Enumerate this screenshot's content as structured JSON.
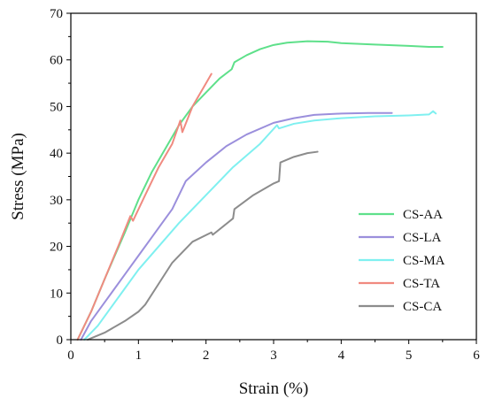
{
  "chart_data": {
    "type": "line",
    "title": "",
    "xlabel": "Strain (%)",
    "ylabel": "Stress (MPa)",
    "xlim": [
      0,
      6
    ],
    "ylim": [
      0,
      70
    ],
    "xticks": [
      "0",
      "1",
      "2",
      "3",
      "4",
      "5",
      "6"
    ],
    "yticks": [
      "0",
      "10",
      "20",
      "30",
      "40",
      "50",
      "60",
      "70"
    ],
    "grid": false,
    "legend_position": "bottom-right",
    "series": [
      {
        "name": "CS-AA",
        "color": "#5ee08a",
        "x": [
          0.1,
          0.3,
          0.5,
          0.8,
          1.0,
          1.2,
          1.4,
          1.6,
          1.8,
          2.0,
          2.2,
          2.38,
          2.42,
          2.6,
          2.8,
          3.0,
          3.2,
          3.5,
          3.8,
          4.0,
          4.5,
          5.0,
          5.3,
          5.5
        ],
        "y": [
          0,
          6,
          13,
          23,
          30,
          36,
          41,
          46,
          50,
          53,
          56,
          58,
          59.5,
          61,
          62.3,
          63.2,
          63.7,
          64,
          63.9,
          63.6,
          63.3,
          63,
          62.8,
          62.8
        ]
      },
      {
        "name": "CS-LA",
        "color": "#9b8fdc",
        "x": [
          0.15,
          0.3,
          0.5,
          0.8,
          1.0,
          1.2,
          1.5,
          1.7,
          2.0,
          2.3,
          2.6,
          3.0,
          3.3,
          3.6,
          4.0,
          4.4,
          4.75
        ],
        "y": [
          0,
          4,
          8,
          14,
          18,
          22,
          28,
          34,
          38,
          41.5,
          44,
          46.5,
          47.5,
          48.2,
          48.5,
          48.6,
          48.6
        ]
      },
      {
        "name": "CS-MA",
        "color": "#7ff0f0",
        "x": [
          0.2,
          0.4,
          0.6,
          0.8,
          1.0,
          1.3,
          1.6,
          2.0,
          2.4,
          2.8,
          3.05,
          3.08,
          3.3,
          3.6,
          4.0,
          4.5,
          5.0,
          5.3,
          5.36,
          5.4
        ],
        "y": [
          0,
          3,
          7,
          11,
          15,
          20,
          25,
          31,
          37,
          42,
          46,
          45.3,
          46.3,
          47,
          47.5,
          47.9,
          48.1,
          48.3,
          49,
          48.5
        ]
      },
      {
        "name": "CS-TA",
        "color": "#f08a80",
        "x": [
          0.1,
          0.3,
          0.5,
          0.7,
          0.88,
          0.92,
          1.1,
          1.3,
          1.5,
          1.62,
          1.65,
          1.8,
          2.0,
          2.08
        ],
        "y": [
          0,
          6,
          13,
          20,
          26.5,
          25.5,
          31,
          37,
          42,
          47,
          44.5,
          50,
          55,
          57
        ]
      },
      {
        "name": "CS-CA",
        "color": "#8c8c8c",
        "x": [
          0.25,
          0.5,
          0.8,
          1.0,
          1.1,
          1.3,
          1.5,
          1.8,
          2.08,
          2.1,
          2.4,
          2.42,
          2.7,
          3.0,
          3.08,
          3.1,
          3.3,
          3.5,
          3.65
        ],
        "y": [
          0,
          1.5,
          4,
          6,
          7.5,
          12,
          16.5,
          21,
          23,
          22.5,
          26,
          28,
          31,
          33.5,
          34,
          38,
          39.2,
          40,
          40.3
        ]
      }
    ]
  }
}
